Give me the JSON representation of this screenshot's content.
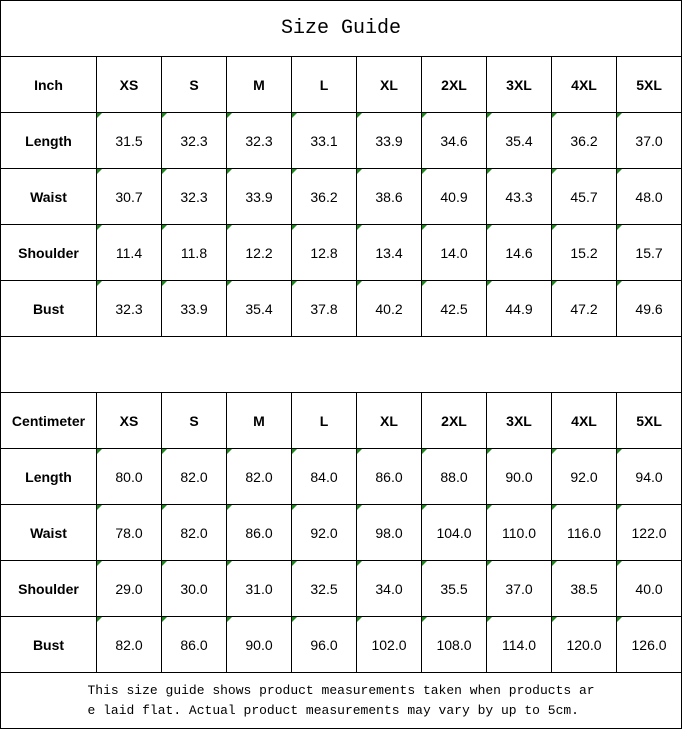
{
  "title": "Size Guide",
  "sizes": [
    "XS",
    "S",
    "M",
    "L",
    "XL",
    "2XL",
    "3XL",
    "4XL",
    "5XL"
  ],
  "tables": [
    {
      "unit": "Inch",
      "rows": [
        {
          "label": "Length",
          "values": [
            "31.5",
            "32.3",
            "32.3",
            "33.1",
            "33.9",
            "34.6",
            "35.4",
            "36.2",
            "37.0"
          ]
        },
        {
          "label": "Waist",
          "values": [
            "30.7",
            "32.3",
            "33.9",
            "36.2",
            "38.6",
            "40.9",
            "43.3",
            "45.7",
            "48.0"
          ]
        },
        {
          "label": "Shoulder",
          "values": [
            "11.4",
            "11.8",
            "12.2",
            "12.8",
            "13.4",
            "14.0",
            "14.6",
            "15.2",
            "15.7"
          ]
        },
        {
          "label": "Bust",
          "values": [
            "32.3",
            "33.9",
            "35.4",
            "37.8",
            "40.2",
            "42.5",
            "44.9",
            "47.2",
            "49.6"
          ]
        }
      ]
    },
    {
      "unit": "Centimeter",
      "rows": [
        {
          "label": "Length",
          "values": [
            "80.0",
            "82.0",
            "82.0",
            "84.0",
            "86.0",
            "88.0",
            "90.0",
            "92.0",
            "94.0"
          ]
        },
        {
          "label": "Waist",
          "values": [
            "78.0",
            "82.0",
            "86.0",
            "92.0",
            "98.0",
            "104.0",
            "110.0",
            "116.0",
            "122.0"
          ]
        },
        {
          "label": "Shoulder",
          "values": [
            "29.0",
            "30.0",
            "31.0",
            "32.5",
            "34.0",
            "35.5",
            "37.0",
            "38.5",
            "40.0"
          ]
        },
        {
          "label": "Bust",
          "values": [
            "82.0",
            "86.0",
            "90.0",
            "96.0",
            "102.0",
            "108.0",
            "114.0",
            "120.0",
            "126.0"
          ]
        }
      ]
    }
  ],
  "note": "This size guide shows product measurements taken when products are laid flat. Actual product measurements may vary by up to 5cm.",
  "colors": {
    "cell_marker": "#1a8a1a",
    "border": "#000000"
  }
}
